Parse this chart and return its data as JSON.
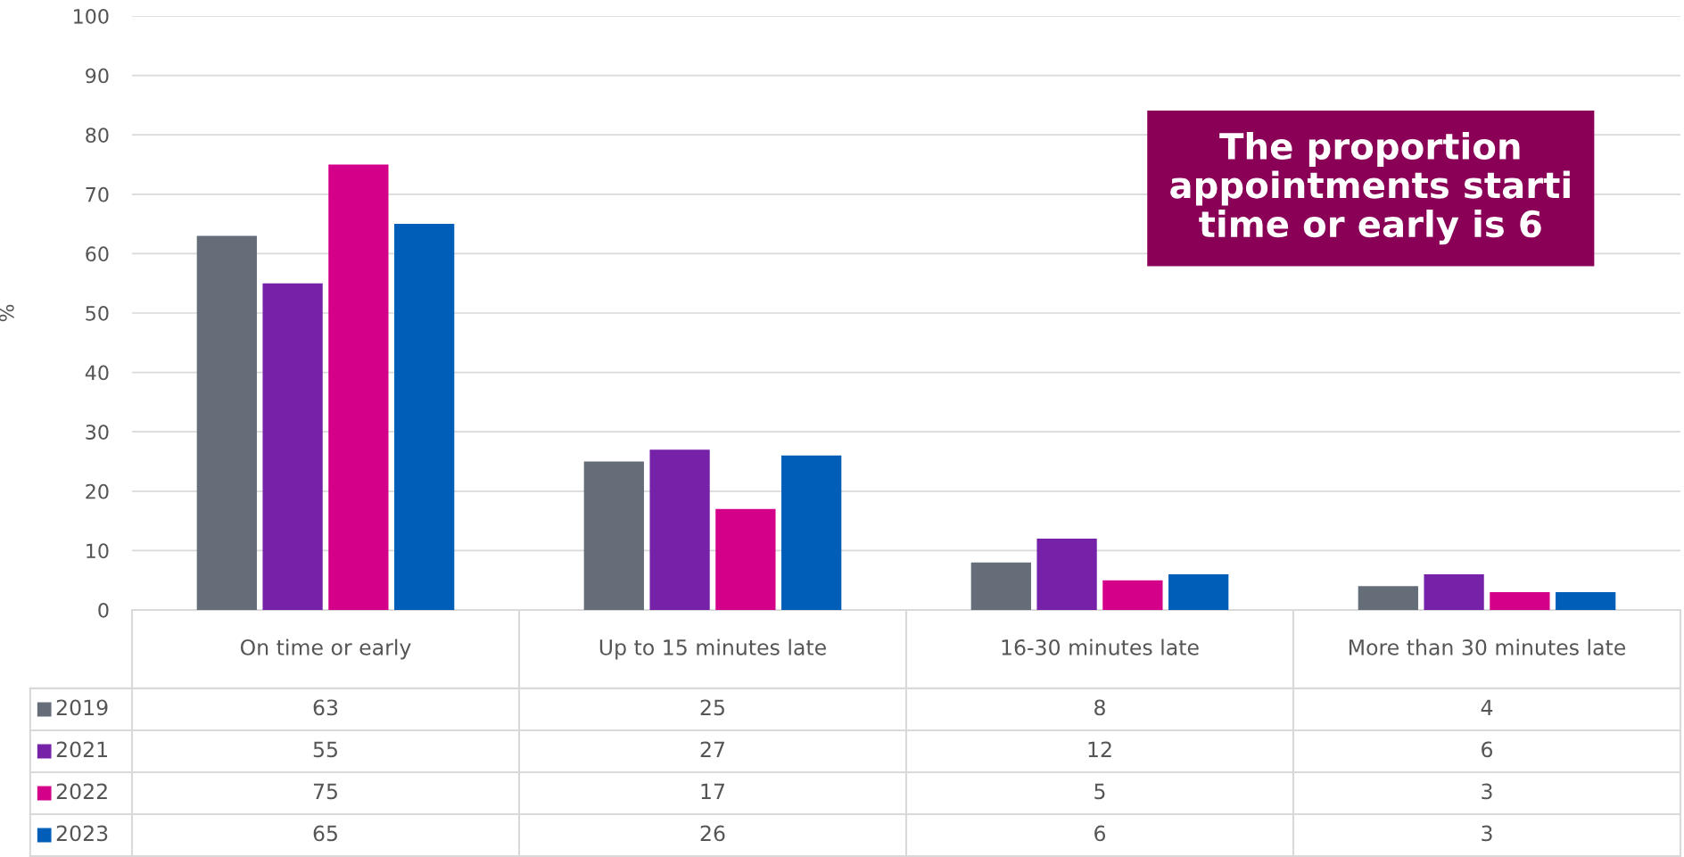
{
  "chart_data": {
    "type": "bar",
    "ylabel": "%",
    "categories": [
      "On time or early",
      "Up to 15 minutes late",
      "16-30 minutes late",
      "More than 30 minutes late"
    ],
    "series": [
      {
        "name": "2019",
        "color": "#646d78",
        "values": [
          63,
          25,
          8,
          4
        ]
      },
      {
        "name": "2021",
        "color": "#7522a8",
        "values": [
          55,
          27,
          12,
          6
        ]
      },
      {
        "name": "2022",
        "color": "#d4008a",
        "values": [
          75,
          17,
          5,
          3
        ]
      },
      {
        "name": "2023",
        "color": "#005eb8",
        "values": [
          65,
          26,
          6,
          3
        ]
      }
    ],
    "ylim": [
      0,
      100
    ],
    "yticks": [
      0,
      10,
      20,
      30,
      40,
      50,
      60,
      70,
      80,
      90,
      100
    ],
    "grid": "y",
    "legend": "bottom",
    "data_labels": true,
    "annotations": [
      "The proportion\nappointments starti\ntime or early is 6"
    ]
  }
}
